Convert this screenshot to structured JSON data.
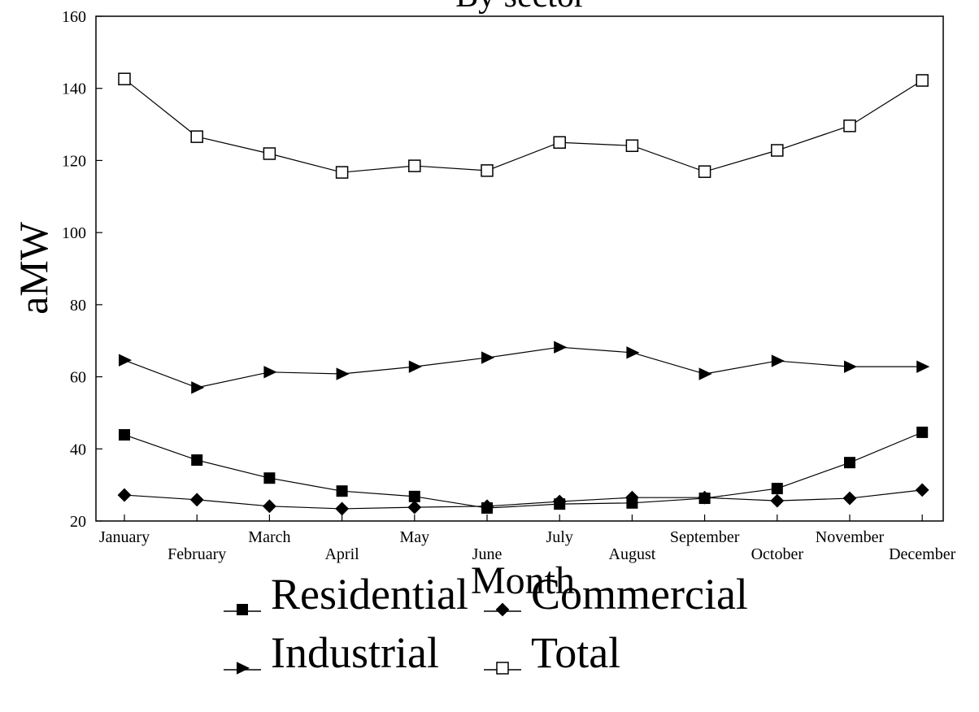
{
  "chart_data": {
    "type": "line",
    "title": "By sector",
    "x_label": "Month",
    "y_label": "aMW",
    "categories": [
      "January",
      "February",
      "March",
      "April",
      "May",
      "June",
      "July",
      "August",
      "September",
      "October",
      "November",
      "December"
    ],
    "series": [
      {
        "name": "Residential",
        "color": "#000000",
        "marker": "square",
        "values": [
          43.9,
          36.9,
          31.9,
          28.3,
          26.8,
          23.6,
          24.7,
          25.0,
          26.3,
          29.0,
          36.2,
          44.6
        ]
      },
      {
        "name": "Commercial",
        "color": "#000000",
        "marker": "diamond",
        "values": [
          27.2,
          25.9,
          24.1,
          23.4,
          23.8,
          24.1,
          25.4,
          26.5,
          26.5,
          25.6,
          26.3,
          28.6
        ]
      },
      {
        "name": "Industrial",
        "color": "#000000",
        "marker": "triangle-right",
        "values": [
          64.6,
          57.0,
          61.3,
          60.8,
          62.8,
          65.3,
          68.2,
          66.7,
          60.8,
          64.4,
          62.8,
          62.8
        ]
      },
      {
        "name": "Total",
        "color": "#000000",
        "marker": "open-square",
        "values": [
          142.6,
          126.6,
          121.9,
          116.7,
          118.5,
          117.2,
          125.0,
          124.1,
          116.9,
          122.8,
          129.6,
          142.2
        ]
      }
    ],
    "ylim": [
      20,
      160
    ],
    "yticks": [
      20,
      40,
      60,
      80,
      100,
      120,
      140,
      160
    ],
    "grid": false,
    "legend": "bottom"
  }
}
